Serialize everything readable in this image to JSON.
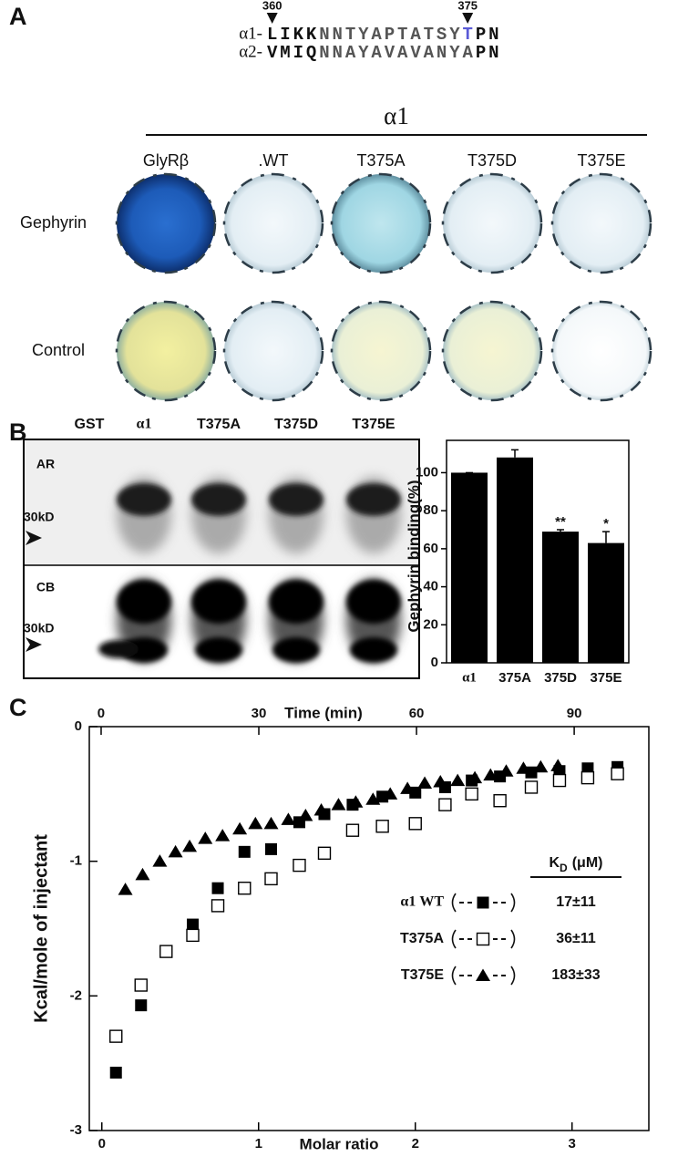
{
  "panel_a": {
    "label": "A",
    "sequence_positions": [
      360,
      375
    ],
    "sequences": [
      {
        "name": "α1-",
        "segments": [
          "LIKK",
          "NNTYAPTATSY",
          "T",
          "PN"
        ]
      },
      {
        "name": "α2-",
        "segments": [
          "VMIQ",
          "NNAYAVAVANYA",
          "PN"
        ]
      }
    ],
    "group_label": "α1",
    "columns": [
      "GlyRβ",
      ".WT",
      "T375A",
      "T375D",
      "T375E"
    ],
    "rows": [
      "Gephyrin",
      "Control"
    ]
  },
  "panel_b": {
    "label": "B",
    "lanes": [
      "GST",
      "α1",
      "T375A",
      "T375D",
      "T375E"
    ],
    "blots": [
      {
        "name": "AR",
        "marker": "30kD"
      },
      {
        "name": "CB",
        "marker": "30kD"
      }
    ]
  },
  "panel_c": {
    "label": "C"
  },
  "chart_data": [
    {
      "type": "bar",
      "ylabel": "Gephyrin binding(%)",
      "categories": [
        "α1",
        "375A",
        "375D",
        "375E"
      ],
      "values": [
        100,
        108,
        69,
        63
      ],
      "errors": [
        0,
        4,
        1,
        6
      ],
      "significance": [
        null,
        null,
        "**",
        "*"
      ],
      "color": "#000000",
      "ylim": [
        0,
        117
      ],
      "yticks": [
        0,
        20,
        40,
        60,
        80,
        100
      ]
    },
    {
      "type": "scatter",
      "xlabel": "Molar ratio",
      "x2label": "Time (min)",
      "ylabel": "Kcal/mole of injectant",
      "xlim": [
        -0.08,
        3.49
      ],
      "xticks": [
        0,
        1,
        2,
        3
      ],
      "x2lim": [
        -2.25,
        104.2
      ],
      "x2ticks": [
        0,
        30,
        60,
        90
      ],
      "ylim": [
        -3,
        0
      ],
      "yticks": [
        -3,
        -2,
        -1,
        0
      ],
      "legend_header": {
        "symbol": "K",
        "subscript": "D",
        "unit": "(μM)"
      },
      "series": [
        {
          "name": "α1 WT",
          "marker": "filled-square",
          "color": "#000000",
          "kd_label": "17±11",
          "x": [
            0.09,
            0.25,
            0.41,
            0.58,
            0.74,
            0.91,
            1.08,
            1.26,
            1.42,
            1.6,
            1.79,
            2.0,
            2.19,
            2.36,
            2.54,
            2.74,
            2.92,
            3.1,
            3.29
          ],
          "values": [
            -2.57,
            -2.07,
            -1.67,
            -1.47,
            -1.2,
            -0.93,
            -0.91,
            -0.71,
            -0.65,
            -0.58,
            -0.52,
            -0.49,
            -0.45,
            -0.4,
            -0.37,
            -0.34,
            -0.33,
            -0.31,
            -0.3
          ]
        },
        {
          "name": "T375A",
          "marker": "open-square",
          "color": "#000000",
          "kd_label": "36±11",
          "x": [
            0.09,
            0.25,
            0.41,
            0.58,
            0.74,
            0.91,
            1.08,
            1.26,
            1.42,
            1.6,
            1.79,
            2.0,
            2.19,
            2.36,
            2.54,
            2.74,
            2.92,
            3.1,
            3.29
          ],
          "values": [
            -2.3,
            -1.92,
            -1.67,
            -1.55,
            -1.33,
            -1.2,
            -1.13,
            -1.03,
            -0.94,
            -0.77,
            -0.74,
            -0.72,
            -0.58,
            -0.5,
            -0.55,
            -0.45,
            -0.4,
            -0.38,
            -0.35
          ]
        },
        {
          "name": "T375E",
          "marker": "filled-triangle",
          "color": "#000000",
          "kd_label": "183±33",
          "x": [
            0.15,
            0.26,
            0.37,
            0.47,
            0.56,
            0.66,
            0.77,
            0.88,
            0.98,
            1.08,
            1.19,
            1.3,
            1.4,
            1.51,
            1.62,
            1.73,
            1.84,
            1.95,
            2.06,
            2.16,
            2.27,
            2.38,
            2.48,
            2.58,
            2.69,
            2.8,
            2.91
          ],
          "values": [
            -1.21,
            -1.1,
            -1.0,
            -0.93,
            -0.89,
            -0.83,
            -0.81,
            -0.76,
            -0.72,
            -0.72,
            -0.69,
            -0.66,
            -0.62,
            -0.58,
            -0.56,
            -0.54,
            -0.5,
            -0.46,
            -0.42,
            -0.41,
            -0.4,
            -0.38,
            -0.36,
            -0.33,
            -0.31,
            -0.3,
            -0.29
          ]
        }
      ]
    }
  ]
}
